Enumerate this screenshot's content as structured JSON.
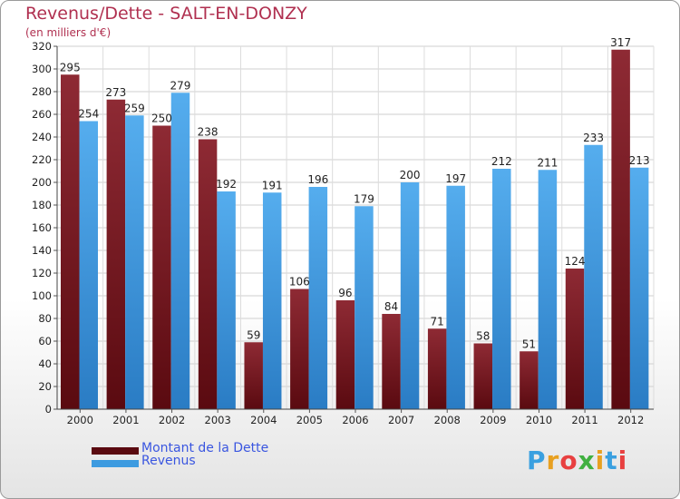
{
  "title": "Revenus/Dette - SALT-EN-DONZY",
  "subtitle": "(en milliers d'€)",
  "logo": "Proxiti",
  "colors": {
    "debt": "#7a1a22",
    "revenue": "#3d9be0",
    "title": "#b03050",
    "legend_text": "#3a56e0"
  },
  "legend": [
    "Montant de la Dette",
    "Revenus"
  ],
  "chart_data": {
    "type": "bar",
    "title": "Revenus/Dette - SALT-EN-DONZY",
    "subtitle": "(en milliers d'€)",
    "xlabel": "",
    "ylabel": "",
    "categories": [
      "2000",
      "2001",
      "2002",
      "2003",
      "2004",
      "2005",
      "2006",
      "2007",
      "2008",
      "2009",
      "2010",
      "2011",
      "2012"
    ],
    "series": [
      {
        "name": "Montant de la Dette",
        "values": [
          295,
          273,
          250,
          238,
          59,
          106,
          96,
          84,
          71,
          58,
          51,
          124,
          317
        ]
      },
      {
        "name": "Revenus",
        "values": [
          254,
          259,
          279,
          192,
          191,
          196,
          179,
          200,
          197,
          212,
          211,
          233,
          213
        ]
      }
    ],
    "ylim": [
      0,
      320
    ],
    "yticks": [
      0,
      20,
      40,
      60,
      80,
      100,
      120,
      140,
      160,
      180,
      200,
      220,
      240,
      260,
      280,
      300,
      320
    ],
    "grid": true,
    "legend_position": "bottom-left"
  }
}
